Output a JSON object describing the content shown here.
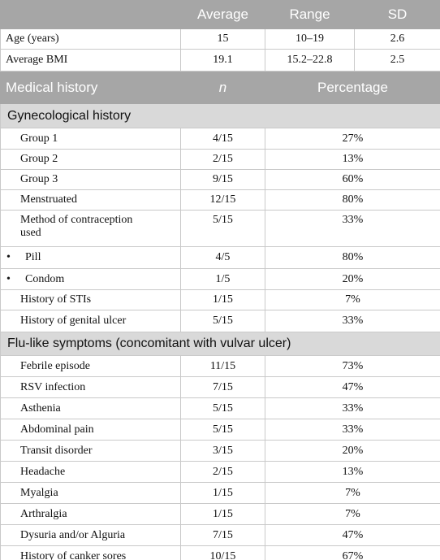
{
  "summary": {
    "columns": [
      "Average",
      "Range",
      "SD"
    ],
    "rows": [
      {
        "label": "Age (years)",
        "average": "15",
        "range": "10–19",
        "sd": "2.6"
      },
      {
        "label": "Average BMI",
        "average": "19.1",
        "range": "15.2–22.8",
        "sd": "2.5"
      }
    ]
  },
  "medical": {
    "columns": [
      "Medical history",
      "n",
      "Percentage"
    ],
    "sections": [
      {
        "title": "Gynecological history",
        "rows": [
          {
            "label": "Group 1",
            "n": "4/15",
            "percentage": "27%"
          },
          {
            "label": "Group 2",
            "n": "2/15",
            "percentage": "13%"
          },
          {
            "label": "Group 3",
            "n": "9/15",
            "percentage": "60%"
          },
          {
            "label": "Menstruated",
            "n": "12/15",
            "percentage": "80%"
          },
          {
            "label": "Method of contraception used",
            "n": "5/15",
            "percentage": "33%"
          },
          {
            "label": "Pill",
            "n": "4/5",
            "percentage": "80%",
            "style": "bullet"
          },
          {
            "label": "Condom",
            "n": "1/5",
            "percentage": "20%",
            "style": "bullet"
          },
          {
            "label": "History of STIs",
            "n": "1/15",
            "percentage": "7%"
          },
          {
            "label": "History of genital ulcer",
            "n": "5/15",
            "percentage": "33%"
          }
        ]
      },
      {
        "title": "Flu-like symptoms (concomitant with vulvar ulcer)",
        "rows": [
          {
            "label": "Febrile episode",
            "n": "11/15",
            "percentage": "73%"
          },
          {
            "label": "RSV infection",
            "n": "7/15",
            "percentage": "47%"
          },
          {
            "label": "Asthenia",
            "n": "5/15",
            "percentage": "33%"
          },
          {
            "label": "Abdominal pain",
            "n": "5/15",
            "percentage": "33%"
          },
          {
            "label": "Transit disorder",
            "n": "3/15",
            "percentage": "20%"
          },
          {
            "label": "Headache",
            "n": "2/15",
            "percentage": "13%"
          },
          {
            "label": "Myalgia",
            "n": "1/15",
            "percentage": "7%"
          },
          {
            "label": "Arthralgia",
            "n": "1/15",
            "percentage": "7%"
          },
          {
            "label": "Dysuria and/or Alguria",
            "n": "7/15",
            "percentage": "47%"
          },
          {
            "label": "History of canker sores",
            "n": "10/15",
            "percentage": "67%"
          }
        ]
      }
    ]
  }
}
